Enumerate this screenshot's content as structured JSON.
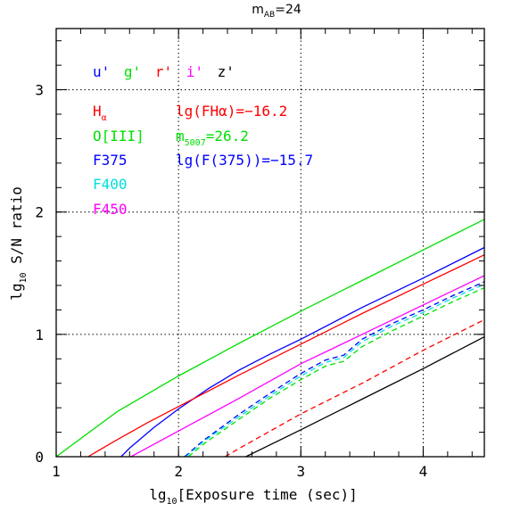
{
  "chart_data": {
    "type": "line",
    "title": {
      "main": "m",
      "sub": "AB",
      "tail": "=24"
    },
    "xlabel": {
      "pre": "lg",
      "sub": "10",
      "post": "[Exposure time (sec)]"
    },
    "ylabel": {
      "pre": "lg",
      "sub": "10",
      "post": " S/N ratio"
    },
    "xlim": [
      1,
      4.5
    ],
    "ylim": [
      0,
      3.5
    ],
    "x_ticks": [
      1,
      2,
      3,
      4
    ],
    "x_tick_labels": [
      "1",
      "2",
      "3",
      "4"
    ],
    "y_ticks": [
      0,
      1,
      2,
      3
    ],
    "y_tick_labels": [
      "0",
      "1",
      "2",
      "3"
    ],
    "grid": true,
    "filters_legend": [
      {
        "label": "u'",
        "color": "#0000ff"
      },
      {
        "label": "g'",
        "color": "#00e000"
      },
      {
        "label": "r'",
        "color": "#ff0000"
      },
      {
        "label": "i'",
        "color": "#ff00ff"
      },
      {
        "label": "z'",
        "color": "#000000"
      }
    ],
    "legend": [
      {
        "label": "H",
        "sub": "α",
        "color": "#ff0000"
      },
      {
        "label": "O[III]",
        "color": "#00e000"
      },
      {
        "label": "F375",
        "color": "#0000ff"
      },
      {
        "label": "F400",
        "color": "#00e0e0"
      },
      {
        "label": "F450",
        "color": "#ff00ff"
      }
    ],
    "annotations": [
      {
        "text": "lg(FHα)=−16.2",
        "color": "#ff0000"
      },
      {
        "pre": "m",
        "sub": "5007",
        "post": "=26.2",
        "color": "#00e000"
      },
      {
        "text": "lg(F(375))=−15.7",
        "color": "#0000ff"
      }
    ],
    "series": [
      {
        "color": "#00e000",
        "dash": "solid",
        "x": [
          1.0,
          1.5,
          2.0,
          2.5,
          3.0,
          3.5,
          4.0,
          4.5
        ],
        "y": [
          0.0,
          0.37,
          0.66,
          0.93,
          1.19,
          1.44,
          1.69,
          1.94
        ]
      },
      {
        "color": "#0000ff",
        "dash": "solid",
        "x": [
          1.53,
          1.6,
          1.8,
          2.0,
          2.25,
          2.5,
          2.75,
          3.0,
          3.5,
          4.0,
          4.5
        ],
        "y": [
          0.0,
          0.07,
          0.24,
          0.39,
          0.56,
          0.71,
          0.84,
          0.96,
          1.22,
          1.46,
          1.71
        ]
      },
      {
        "color": "#ff0000",
        "dash": "solid",
        "x": [
          1.26,
          1.5,
          1.75,
          2.0,
          2.5,
          3.0,
          3.5,
          4.0,
          4.5
        ],
        "y": [
          0.0,
          0.14,
          0.28,
          0.41,
          0.67,
          0.92,
          1.17,
          1.41,
          1.65
        ]
      },
      {
        "color": "#ff00ff",
        "dash": "solid",
        "x": [
          1.61,
          2.0,
          2.5,
          3.0,
          3.5,
          4.0,
          4.5
        ],
        "y": [
          0.0,
          0.21,
          0.48,
          0.76,
          1.0,
          1.24,
          1.48
        ]
      },
      {
        "color": "#0000ff",
        "dash": "dashed",
        "x": [
          2.05,
          2.2,
          2.5,
          2.75,
          3.0,
          3.2,
          3.35,
          3.5,
          3.75,
          4.0,
          4.25,
          4.5
        ],
        "y": [
          0.0,
          0.13,
          0.35,
          0.52,
          0.68,
          0.79,
          0.83,
          0.96,
          1.09,
          1.2,
          1.32,
          1.43
        ]
      },
      {
        "color": "#00e0e0",
        "dash": "dashed",
        "x": [
          2.06,
          2.2,
          2.5,
          2.75,
          3.0,
          3.2,
          3.35,
          3.5,
          3.75,
          4.0,
          4.25,
          4.5
        ],
        "y": [
          0.0,
          0.12,
          0.33,
          0.5,
          0.66,
          0.77,
          0.81,
          0.94,
          1.07,
          1.18,
          1.3,
          1.41
        ]
      },
      {
        "color": "#00e000",
        "dash": "dashed",
        "x": [
          2.08,
          2.2,
          2.5,
          2.75,
          3.0,
          3.2,
          3.35,
          3.5,
          3.75,
          4.0,
          4.25,
          4.5
        ],
        "y": [
          0.0,
          0.1,
          0.31,
          0.48,
          0.63,
          0.74,
          0.78,
          0.9,
          1.03,
          1.15,
          1.27,
          1.38
        ]
      },
      {
        "color": "#ff0000",
        "dash": "dashed",
        "x": [
          2.38,
          2.5,
          3.0,
          3.5,
          4.0,
          4.5
        ],
        "y": [
          0.0,
          0.07,
          0.35,
          0.6,
          0.87,
          1.12
        ]
      },
      {
        "color": "#000000",
        "dash": "solid",
        "x": [
          2.55,
          3.0,
          3.5,
          4.0,
          4.5
        ],
        "y": [
          0.0,
          0.22,
          0.47,
          0.72,
          0.98
        ]
      }
    ]
  }
}
